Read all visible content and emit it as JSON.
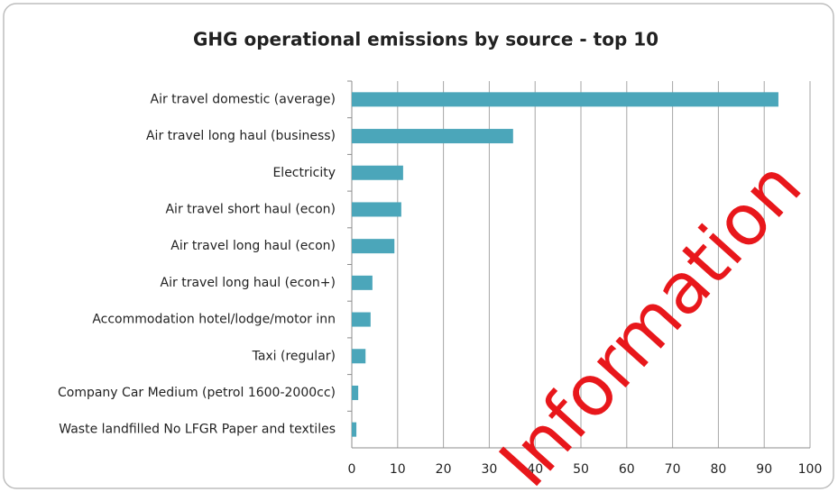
{
  "chart_data": {
    "type": "bar",
    "orientation": "horizontal",
    "title": "GHG operational emissions by source - top 10",
    "categories": [
      "Air travel domestic (average)",
      "Air travel long haul (business)",
      "Electricity",
      "Air travel short haul (econ)",
      "Air travel long haul (econ)",
      "Air travel long haul (econ+)",
      "Accommodation hotel/lodge/motor inn",
      "Taxi (regular)",
      "Company Car Medium (petrol 1600-2000cc)",
      "Waste landfilled No LFGR Paper and textiles"
    ],
    "values": [
      93.1,
      35.2,
      11.2,
      10.8,
      9.3,
      4.5,
      4.1,
      3.0,
      1.4,
      1.0
    ],
    "color": "#4ba6ba",
    "xlim": [
      0,
      100
    ],
    "xticks": [
      0,
      10,
      20,
      30,
      40,
      50,
      60,
      70,
      80,
      90,
      100
    ],
    "grid": true,
    "watermark": "Information"
  }
}
